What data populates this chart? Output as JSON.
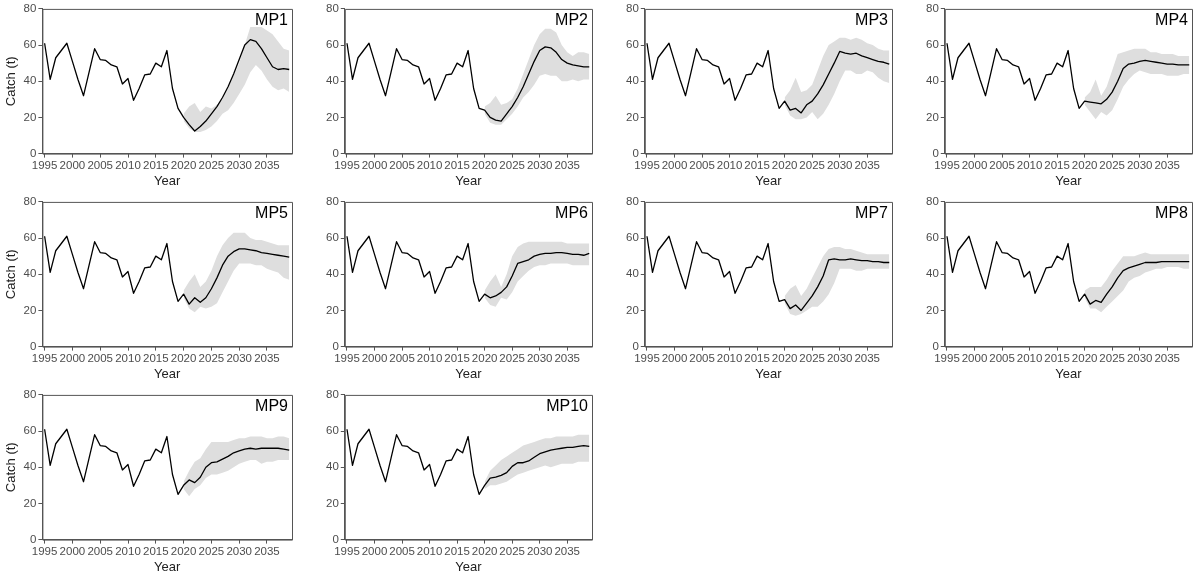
{
  "chart_data": [
    {
      "type": "line",
      "title": "MP1",
      "xlabel": "Year",
      "ylabel": "Catch (t)",
      "xlim": [
        1994.6,
        2039.5
      ],
      "xticks": [
        1995,
        2000,
        2005,
        2010,
        2015,
        2020,
        2025,
        2030,
        2035
      ],
      "ylim": [
        0,
        80
      ],
      "yticks": [
        0,
        20,
        40,
        60,
        80
      ],
      "grid": false,
      "legend": false,
      "x": [
        1995,
        1996,
        1997,
        1998,
        1999,
        2000,
        2001,
        2002,
        2003,
        2004,
        2005,
        2006,
        2007,
        2008,
        2009,
        2010,
        2011,
        2012,
        2013,
        2014,
        2015,
        2016,
        2017,
        2018,
        2019,
        2020,
        2021,
        2022,
        2023,
        2024,
        2025,
        2026,
        2027,
        2028,
        2029,
        2030,
        2031,
        2032,
        2033,
        2034,
        2035,
        2036,
        2037,
        2038,
        2039
      ],
      "series": [
        {
          "color": "#000000",
          "values": [
            61,
            41,
            53,
            57,
            61,
            51,
            41,
            32,
            45,
            58,
            52,
            51.5,
            49,
            48,
            38.5,
            41.5,
            29.5,
            36,
            43.5,
            44,
            50,
            48,
            57,
            36,
            25,
            20,
            16,
            12.5,
            15,
            18,
            22,
            26,
            31,
            37,
            44,
            52,
            60,
            63,
            62,
            58,
            53,
            48,
            46.5,
            47,
            46.5
          ],
          "lower": [
            null,
            null,
            null,
            null,
            null,
            null,
            null,
            null,
            null,
            null,
            null,
            null,
            null,
            null,
            null,
            null,
            null,
            null,
            null,
            null,
            null,
            null,
            null,
            null,
            null,
            18,
            14,
            12,
            12,
            13,
            15,
            18,
            22,
            24,
            28,
            33,
            38,
            45,
            49,
            46,
            41,
            37,
            35,
            36,
            34
          ],
          "upper": [
            null,
            null,
            null,
            null,
            null,
            null,
            null,
            null,
            null,
            null,
            null,
            null,
            null,
            null,
            null,
            null,
            null,
            null,
            null,
            null,
            null,
            null,
            null,
            null,
            null,
            22,
            26,
            28,
            23,
            26,
            25,
            27,
            30,
            36,
            43,
            50,
            60,
            70,
            70,
            70,
            68,
            66,
            62,
            58,
            57
          ]
        }
      ]
    },
    {
      "type": "line",
      "title": "MP2",
      "xlabel": "Year",
      "xlim": [
        1994.6,
        2039.5
      ],
      "xticks": [
        1995,
        2000,
        2005,
        2010,
        2015,
        2020,
        2025,
        2030,
        2035
      ],
      "ylim": [
        0,
        80
      ],
      "yticks": [
        0,
        20,
        40,
        60,
        80
      ],
      "grid": false,
      "legend": false,
      "x": [
        1995,
        1996,
        1997,
        1998,
        1999,
        2000,
        2001,
        2002,
        2003,
        2004,
        2005,
        2006,
        2007,
        2008,
        2009,
        2010,
        2011,
        2012,
        2013,
        2014,
        2015,
        2016,
        2017,
        2018,
        2019,
        2020,
        2021,
        2022,
        2023,
        2024,
        2025,
        2026,
        2027,
        2028,
        2029,
        2030,
        2031,
        2032,
        2033,
        2034,
        2035,
        2036,
        2037,
        2038,
        2039
      ],
      "series": [
        {
          "color": "#000000",
          "values": [
            61,
            41,
            53,
            57,
            61,
            51,
            41,
            32,
            45,
            58,
            52,
            51.5,
            49,
            48,
            38.5,
            41.5,
            29.5,
            36,
            43.5,
            44,
            50,
            48,
            57,
            36,
            25,
            24,
            20,
            18.5,
            18,
            22,
            26,
            31,
            37,
            44,
            51,
            57,
            59,
            58.5,
            56,
            52,
            50,
            49,
            48.5,
            48,
            48
          ],
          "lower": [
            null,
            null,
            null,
            null,
            null,
            null,
            null,
            null,
            null,
            null,
            null,
            null,
            null,
            null,
            null,
            null,
            null,
            null,
            null,
            null,
            null,
            null,
            null,
            null,
            null,
            22,
            17,
            16,
            16,
            19,
            22,
            26,
            31,
            34,
            38,
            43,
            44,
            43,
            43,
            40,
            40,
            41,
            40,
            41,
            41
          ],
          "upper": [
            null,
            null,
            null,
            null,
            null,
            null,
            null,
            null,
            null,
            null,
            null,
            null,
            null,
            null,
            null,
            null,
            null,
            null,
            null,
            null,
            null,
            null,
            null,
            null,
            null,
            26,
            28,
            32,
            27,
            28,
            30,
            36,
            44,
            52,
            60,
            66,
            69,
            69,
            67,
            60,
            56,
            54,
            56,
            56,
            55
          ]
        }
      ]
    },
    {
      "type": "line",
      "title": "MP3",
      "xlabel": "Year",
      "xlim": [
        1994.6,
        2039.5
      ],
      "xticks": [
        1995,
        2000,
        2005,
        2010,
        2015,
        2020,
        2025,
        2030,
        2035
      ],
      "ylim": [
        0,
        80
      ],
      "yticks": [
        0,
        20,
        40,
        60,
        80
      ],
      "grid": false,
      "legend": false,
      "x": [
        1995,
        1996,
        1997,
        1998,
        1999,
        2000,
        2001,
        2002,
        2003,
        2004,
        2005,
        2006,
        2007,
        2008,
        2009,
        2010,
        2011,
        2012,
        2013,
        2014,
        2015,
        2016,
        2017,
        2018,
        2019,
        2020,
        2021,
        2022,
        2023,
        2024,
        2025,
        2026,
        2027,
        2028,
        2029,
        2030,
        2031,
        2032,
        2033,
        2034,
        2035,
        2036,
        2037,
        2038,
        2039
      ],
      "series": [
        {
          "color": "#000000",
          "values": [
            61,
            41,
            53,
            57,
            61,
            51,
            41,
            32,
            45,
            58,
            52,
            51.5,
            49,
            48,
            38.5,
            41.5,
            29.5,
            36,
            43.5,
            44,
            50,
            48,
            57,
            36,
            25,
            29,
            24,
            25,
            22.5,
            27,
            29,
            33,
            38,
            44,
            50,
            56.5,
            55.5,
            55,
            55.5,
            54,
            53,
            52,
            51,
            50.5,
            49.5
          ],
          "lower": [
            null,
            null,
            null,
            null,
            null,
            null,
            null,
            null,
            null,
            null,
            null,
            null,
            null,
            null,
            null,
            null,
            null,
            null,
            null,
            null,
            null,
            null,
            null,
            null,
            null,
            27,
            21,
            19,
            19,
            20,
            23,
            19,
            22,
            27,
            33,
            40,
            46,
            46,
            44,
            44,
            46,
            45,
            42,
            40,
            39
          ],
          "upper": [
            null,
            null,
            null,
            null,
            null,
            null,
            null,
            null,
            null,
            null,
            null,
            null,
            null,
            null,
            null,
            null,
            null,
            null,
            null,
            null,
            null,
            null,
            null,
            null,
            null,
            31,
            35,
            42,
            34,
            35,
            38,
            46,
            54,
            60,
            62,
            64,
            64,
            63,
            64,
            63,
            61,
            60,
            58,
            57,
            57
          ]
        }
      ]
    },
    {
      "type": "line",
      "title": "MP4",
      "xlabel": "Year",
      "xlim": [
        1994.6,
        2039.5
      ],
      "xticks": [
        1995,
        2000,
        2005,
        2010,
        2015,
        2020,
        2025,
        2030,
        2035
      ],
      "ylim": [
        0,
        80
      ],
      "yticks": [
        0,
        20,
        40,
        60,
        80
      ],
      "grid": false,
      "legend": false,
      "x": [
        1995,
        1996,
        1997,
        1998,
        1999,
        2000,
        2001,
        2002,
        2003,
        2004,
        2005,
        2006,
        2007,
        2008,
        2009,
        2010,
        2011,
        2012,
        2013,
        2014,
        2015,
        2016,
        2017,
        2018,
        2019,
        2020,
        2021,
        2022,
        2023,
        2024,
        2025,
        2026,
        2027,
        2028,
        2029,
        2030,
        2031,
        2032,
        2033,
        2034,
        2035,
        2036,
        2037,
        2038,
        2039
      ],
      "series": [
        {
          "color": "#000000",
          "values": [
            61,
            41,
            53,
            57,
            61,
            51,
            41,
            32,
            45,
            58,
            52,
            51.5,
            49,
            48,
            38.5,
            41.5,
            29.5,
            36,
            43.5,
            44,
            50,
            48,
            57,
            36,
            25,
            29,
            28.5,
            28,
            27.5,
            30,
            34,
            40,
            47,
            49.5,
            50,
            51,
            51.5,
            51,
            50.5,
            50,
            49.5,
            49.5,
            49,
            49,
            49
          ],
          "lower": [
            null,
            null,
            null,
            null,
            null,
            null,
            null,
            null,
            null,
            null,
            null,
            null,
            null,
            null,
            null,
            null,
            null,
            null,
            null,
            null,
            null,
            null,
            null,
            null,
            null,
            27,
            23,
            19,
            23,
            21,
            24,
            30,
            37,
            41,
            44,
            46,
            45,
            44,
            44,
            44,
            43,
            43,
            43,
            44,
            44
          ],
          "upper": [
            null,
            null,
            null,
            null,
            null,
            null,
            null,
            null,
            null,
            null,
            null,
            null,
            null,
            null,
            null,
            null,
            null,
            null,
            null,
            null,
            null,
            null,
            null,
            null,
            null,
            31,
            34,
            41,
            32,
            37,
            46,
            55,
            56,
            57,
            58,
            58,
            58,
            56,
            56,
            55,
            55,
            55,
            54,
            54,
            54
          ]
        }
      ]
    },
    {
      "type": "line",
      "title": "MP5",
      "xlabel": "Year",
      "ylabel": "Catch (t)",
      "xlim": [
        1994.6,
        2039.5
      ],
      "xticks": [
        1995,
        2000,
        2005,
        2010,
        2015,
        2020,
        2025,
        2030,
        2035
      ],
      "ylim": [
        0,
        80
      ],
      "yticks": [
        0,
        20,
        40,
        60,
        80
      ],
      "grid": false,
      "legend": false,
      "x": [
        1995,
        1996,
        1997,
        1998,
        1999,
        2000,
        2001,
        2002,
        2003,
        2004,
        2005,
        2006,
        2007,
        2008,
        2009,
        2010,
        2011,
        2012,
        2013,
        2014,
        2015,
        2016,
        2017,
        2018,
        2019,
        2020,
        2021,
        2022,
        2023,
        2024,
        2025,
        2026,
        2027,
        2028,
        2029,
        2030,
        2031,
        2032,
        2033,
        2034,
        2035,
        2036,
        2037,
        2038,
        2039
      ],
      "series": [
        {
          "color": "#000000",
          "values": [
            61,
            41,
            53,
            57,
            61,
            51,
            41,
            32,
            45,
            58,
            52,
            51.5,
            49,
            48,
            38.5,
            41.5,
            29.5,
            36,
            43.5,
            44,
            50,
            48,
            57,
            36,
            25,
            29,
            23.5,
            27,
            24.5,
            27,
            32,
            38,
            45,
            50,
            52.5,
            54,
            54,
            53.5,
            53,
            52,
            51.5,
            51,
            50.5,
            50,
            49.5
          ],
          "lower": [
            null,
            null,
            null,
            null,
            null,
            null,
            null,
            null,
            null,
            null,
            null,
            null,
            null,
            null,
            null,
            null,
            null,
            null,
            null,
            null,
            null,
            null,
            null,
            null,
            null,
            27,
            21,
            19,
            22,
            21,
            22,
            24,
            30,
            36,
            42,
            46,
            46,
            46,
            45,
            45,
            43,
            42,
            41,
            38,
            37
          ],
          "upper": [
            null,
            null,
            null,
            null,
            null,
            null,
            null,
            null,
            null,
            null,
            null,
            null,
            null,
            null,
            null,
            null,
            null,
            null,
            null,
            null,
            null,
            null,
            null,
            null,
            null,
            31,
            36,
            40,
            33,
            36,
            42,
            50,
            56,
            60,
            63,
            63,
            63,
            60,
            59,
            59,
            58,
            57,
            56,
            56,
            56
          ]
        }
      ]
    },
    {
      "type": "line",
      "title": "MP6",
      "xlabel": "Year",
      "xlim": [
        1994.6,
        2039.5
      ],
      "xticks": [
        1995,
        2000,
        2005,
        2010,
        2015,
        2020,
        2025,
        2030,
        2035
      ],
      "ylim": [
        0,
        80
      ],
      "yticks": [
        0,
        20,
        40,
        60,
        80
      ],
      "grid": false,
      "legend": false,
      "x": [
        1995,
        1996,
        1997,
        1998,
        1999,
        2000,
        2001,
        2002,
        2003,
        2004,
        2005,
        2006,
        2007,
        2008,
        2009,
        2010,
        2011,
        2012,
        2013,
        2014,
        2015,
        2016,
        2017,
        2018,
        2019,
        2020,
        2021,
        2022,
        2023,
        2024,
        2025,
        2026,
        2027,
        2028,
        2029,
        2030,
        2031,
        2032,
        2033,
        2034,
        2035,
        2036,
        2037,
        2038,
        2039
      ],
      "series": [
        {
          "color": "#000000",
          "values": [
            61,
            41,
            53,
            57,
            61,
            51,
            41,
            32,
            45,
            58,
            52,
            51.5,
            49,
            48,
            38.5,
            41.5,
            29.5,
            36,
            43.5,
            44,
            50,
            48,
            57,
            36,
            25,
            29,
            27,
            28,
            30,
            33,
            39,
            46,
            47,
            48,
            50,
            51,
            51.5,
            51.5,
            52,
            52,
            51.5,
            51,
            51,
            50.5,
            51.5
          ],
          "lower": [
            null,
            null,
            null,
            null,
            null,
            null,
            null,
            null,
            null,
            null,
            null,
            null,
            null,
            null,
            null,
            null,
            null,
            null,
            null,
            null,
            null,
            null,
            null,
            null,
            null,
            27,
            23,
            22,
            27,
            26,
            30,
            36,
            39,
            42,
            44,
            45,
            45,
            46,
            46,
            46,
            46,
            45,
            45,
            45,
            45
          ],
          "upper": [
            null,
            null,
            null,
            null,
            null,
            null,
            null,
            null,
            null,
            null,
            null,
            null,
            null,
            null,
            null,
            null,
            null,
            null,
            null,
            null,
            null,
            null,
            null,
            null,
            null,
            31,
            36,
            40,
            33,
            40,
            50,
            55,
            57,
            58,
            58,
            58,
            58,
            58,
            58,
            58,
            57,
            57,
            57,
            57,
            57
          ]
        }
      ]
    },
    {
      "type": "line",
      "title": "MP7",
      "xlabel": "Year",
      "xlim": [
        1994.6,
        2039.5
      ],
      "xticks": [
        1995,
        2000,
        2005,
        2010,
        2015,
        2020,
        2025,
        2030,
        2035
      ],
      "ylim": [
        0,
        80
      ],
      "yticks": [
        0,
        20,
        40,
        60,
        80
      ],
      "grid": false,
      "legend": false,
      "x": [
        1995,
        1996,
        1997,
        1998,
        1999,
        2000,
        2001,
        2002,
        2003,
        2004,
        2005,
        2006,
        2007,
        2008,
        2009,
        2010,
        2011,
        2012,
        2013,
        2014,
        2015,
        2016,
        2017,
        2018,
        2019,
        2020,
        2021,
        2022,
        2023,
        2024,
        2025,
        2026,
        2027,
        2028,
        2029,
        2030,
        2031,
        2032,
        2033,
        2034,
        2035,
        2036,
        2037,
        2038,
        2039
      ],
      "series": [
        {
          "color": "#000000",
          "values": [
            61,
            41,
            53,
            57,
            61,
            51,
            41,
            32,
            45,
            58,
            52,
            51.5,
            49,
            48,
            38.5,
            41.5,
            29.5,
            36,
            43.5,
            44,
            50,
            48,
            57,
            36,
            25,
            26,
            21,
            23,
            20,
            24,
            28,
            33,
            39,
            48,
            48.5,
            48,
            48,
            48.5,
            48,
            47.5,
            47.5,
            47,
            47,
            46.5,
            46.5
          ],
          "lower": [
            null,
            null,
            null,
            null,
            null,
            null,
            null,
            null,
            null,
            null,
            null,
            null,
            null,
            null,
            null,
            null,
            null,
            null,
            null,
            null,
            null,
            null,
            null,
            null,
            null,
            24,
            18,
            17,
            18,
            20,
            22,
            22,
            25,
            29,
            35,
            43,
            43,
            43,
            42,
            42,
            43,
            43,
            43,
            43,
            43
          ],
          "upper": [
            null,
            null,
            null,
            null,
            null,
            null,
            null,
            null,
            null,
            null,
            null,
            null,
            null,
            null,
            null,
            null,
            null,
            null,
            null,
            null,
            null,
            null,
            null,
            null,
            null,
            28,
            32,
            34,
            28,
            32,
            38,
            44,
            50,
            54,
            55,
            55,
            54,
            54,
            53,
            52,
            51,
            51,
            51,
            51,
            51
          ]
        }
      ]
    },
    {
      "type": "line",
      "title": "MP8",
      "xlabel": "Year",
      "xlim": [
        1994.6,
        2039.5
      ],
      "xticks": [
        1995,
        2000,
        2005,
        2010,
        2015,
        2020,
        2025,
        2030,
        2035
      ],
      "ylim": [
        0,
        80
      ],
      "yticks": [
        0,
        20,
        40,
        60,
        80
      ],
      "grid": false,
      "legend": false,
      "x": [
        1995,
        1996,
        1997,
        1998,
        1999,
        2000,
        2001,
        2002,
        2003,
        2004,
        2005,
        2006,
        2007,
        2008,
        2009,
        2010,
        2011,
        2012,
        2013,
        2014,
        2015,
        2016,
        2017,
        2018,
        2019,
        2020,
        2021,
        2022,
        2023,
        2024,
        2025,
        2026,
        2027,
        2028,
        2029,
        2030,
        2031,
        2032,
        2033,
        2034,
        2035,
        2036,
        2037,
        2038,
        2039
      ],
      "series": [
        {
          "color": "#000000",
          "values": [
            61,
            41,
            53,
            57,
            61,
            51,
            41,
            32,
            45,
            58,
            52,
            51.5,
            49,
            48,
            38.5,
            41.5,
            29.5,
            36,
            43.5,
            44,
            50,
            48,
            57,
            36,
            25,
            29,
            23.5,
            25.5,
            24.5,
            29,
            33,
            38,
            42,
            43.5,
            44.5,
            45.5,
            46.5,
            46.5,
            46.5,
            47,
            47,
            47,
            47,
            47,
            47
          ],
          "lower": [
            null,
            null,
            null,
            null,
            null,
            null,
            null,
            null,
            null,
            null,
            null,
            null,
            null,
            null,
            null,
            null,
            null,
            null,
            null,
            null,
            null,
            null,
            null,
            null,
            null,
            27,
            21,
            21,
            19,
            22,
            25,
            28,
            31,
            36,
            38,
            39,
            41,
            42,
            43,
            43,
            44,
            44,
            44,
            43,
            43
          ],
          "upper": [
            null,
            null,
            null,
            null,
            null,
            null,
            null,
            null,
            null,
            null,
            null,
            null,
            null,
            null,
            null,
            null,
            null,
            null,
            null,
            null,
            null,
            null,
            null,
            null,
            null,
            31,
            33,
            33,
            33,
            37,
            42,
            46,
            50,
            50,
            50,
            51,
            52,
            51,
            51,
            51,
            51,
            51,
            51,
            51,
            51
          ]
        }
      ]
    },
    {
      "type": "line",
      "title": "MP9",
      "xlabel": "Year",
      "ylabel": "Catch (t)",
      "xlim": [
        1994.6,
        2039.5
      ],
      "xticks": [
        1995,
        2000,
        2005,
        2010,
        2015,
        2020,
        2025,
        2030,
        2035
      ],
      "ylim": [
        0,
        80
      ],
      "yticks": [
        0,
        20,
        40,
        60,
        80
      ],
      "grid": false,
      "legend": false,
      "x": [
        1995,
        1996,
        1997,
        1998,
        1999,
        2000,
        2001,
        2002,
        2003,
        2004,
        2005,
        2006,
        2007,
        2008,
        2009,
        2010,
        2011,
        2012,
        2013,
        2014,
        2015,
        2016,
        2017,
        2018,
        2019,
        2020,
        2021,
        2022,
        2023,
        2024,
        2025,
        2026,
        2027,
        2028,
        2029,
        2030,
        2031,
        2032,
        2033,
        2034,
        2035,
        2036,
        2037,
        2038,
        2039
      ],
      "series": [
        {
          "color": "#000000",
          "values": [
            61,
            41,
            53,
            57,
            61,
            51,
            41,
            32,
            45,
            58,
            52,
            51.5,
            49,
            48,
            38.5,
            41.5,
            29.5,
            36,
            43.5,
            44,
            50,
            48,
            57,
            36,
            25,
            30,
            33,
            31.5,
            34.5,
            40,
            42.5,
            43,
            44.5,
            46,
            48,
            49,
            50,
            50.5,
            50,
            50.5,
            50.5,
            50.5,
            50.5,
            50,
            49.5
          ],
          "lower": [
            null,
            null,
            null,
            null,
            null,
            null,
            null,
            null,
            null,
            null,
            null,
            null,
            null,
            null,
            null,
            null,
            null,
            null,
            null,
            null,
            null,
            null,
            null,
            null,
            null,
            28,
            24,
            28,
            30,
            34,
            36,
            36,
            37,
            38,
            40,
            42,
            43,
            44,
            44,
            42,
            43,
            43,
            44,
            44,
            44
          ],
          "upper": [
            null,
            null,
            null,
            null,
            null,
            null,
            null,
            null,
            null,
            null,
            null,
            null,
            null,
            null,
            null,
            null,
            null,
            null,
            null,
            null,
            null,
            null,
            null,
            null,
            null,
            32,
            38,
            43,
            45,
            50,
            54,
            54,
            54,
            54,
            55,
            56,
            56,
            57,
            57,
            57,
            56,
            56,
            57,
            57,
            56
          ]
        }
      ]
    },
    {
      "type": "line",
      "title": "MP10",
      "xlabel": "Year",
      "xlim": [
        1994.6,
        2039.5
      ],
      "xticks": [
        1995,
        2000,
        2005,
        2010,
        2015,
        2020,
        2025,
        2030,
        2035
      ],
      "ylim": [
        0,
        80
      ],
      "yticks": [
        0,
        20,
        40,
        60,
        80
      ],
      "grid": false,
      "legend": false,
      "x": [
        1995,
        1996,
        1997,
        1998,
        1999,
        2000,
        2001,
        2002,
        2003,
        2004,
        2005,
        2006,
        2007,
        2008,
        2009,
        2010,
        2011,
        2012,
        2013,
        2014,
        2015,
        2016,
        2017,
        2018,
        2019,
        2020,
        2021,
        2022,
        2023,
        2024,
        2025,
        2026,
        2027,
        2028,
        2029,
        2030,
        2031,
        2032,
        2033,
        2034,
        2035,
        2036,
        2037,
        2038,
        2039
      ],
      "series": [
        {
          "color": "#000000",
          "values": [
            61,
            41,
            53,
            57,
            61,
            51,
            41,
            32,
            45,
            58,
            52,
            51.5,
            49,
            48,
            38.5,
            41.5,
            29.5,
            36,
            43.5,
            44,
            50,
            48,
            57,
            36,
            25,
            30,
            34,
            34.5,
            35.5,
            37,
            40.5,
            42.5,
            42.5,
            43.5,
            45.5,
            47.5,
            48.5,
            49.5,
            50,
            50.5,
            51,
            51,
            51.5,
            52,
            51.5
          ],
          "lower": [
            null,
            null,
            null,
            null,
            null,
            null,
            null,
            null,
            null,
            null,
            null,
            null,
            null,
            null,
            null,
            null,
            null,
            null,
            null,
            null,
            null,
            null,
            null,
            null,
            null,
            28,
            30,
            30,
            31,
            32,
            34,
            36,
            37,
            38,
            39,
            40,
            41,
            40,
            41,
            42,
            42,
            42,
            43,
            43,
            43
          ],
          "upper": [
            null,
            null,
            null,
            null,
            null,
            null,
            null,
            null,
            null,
            null,
            null,
            null,
            null,
            null,
            null,
            null,
            null,
            null,
            null,
            null,
            null,
            null,
            null,
            null,
            null,
            32,
            38,
            41,
            44,
            46,
            48,
            50,
            52,
            53,
            54,
            55,
            56,
            56,
            57,
            57,
            57,
            57,
            58,
            58,
            58
          ]
        }
      ]
    }
  ]
}
